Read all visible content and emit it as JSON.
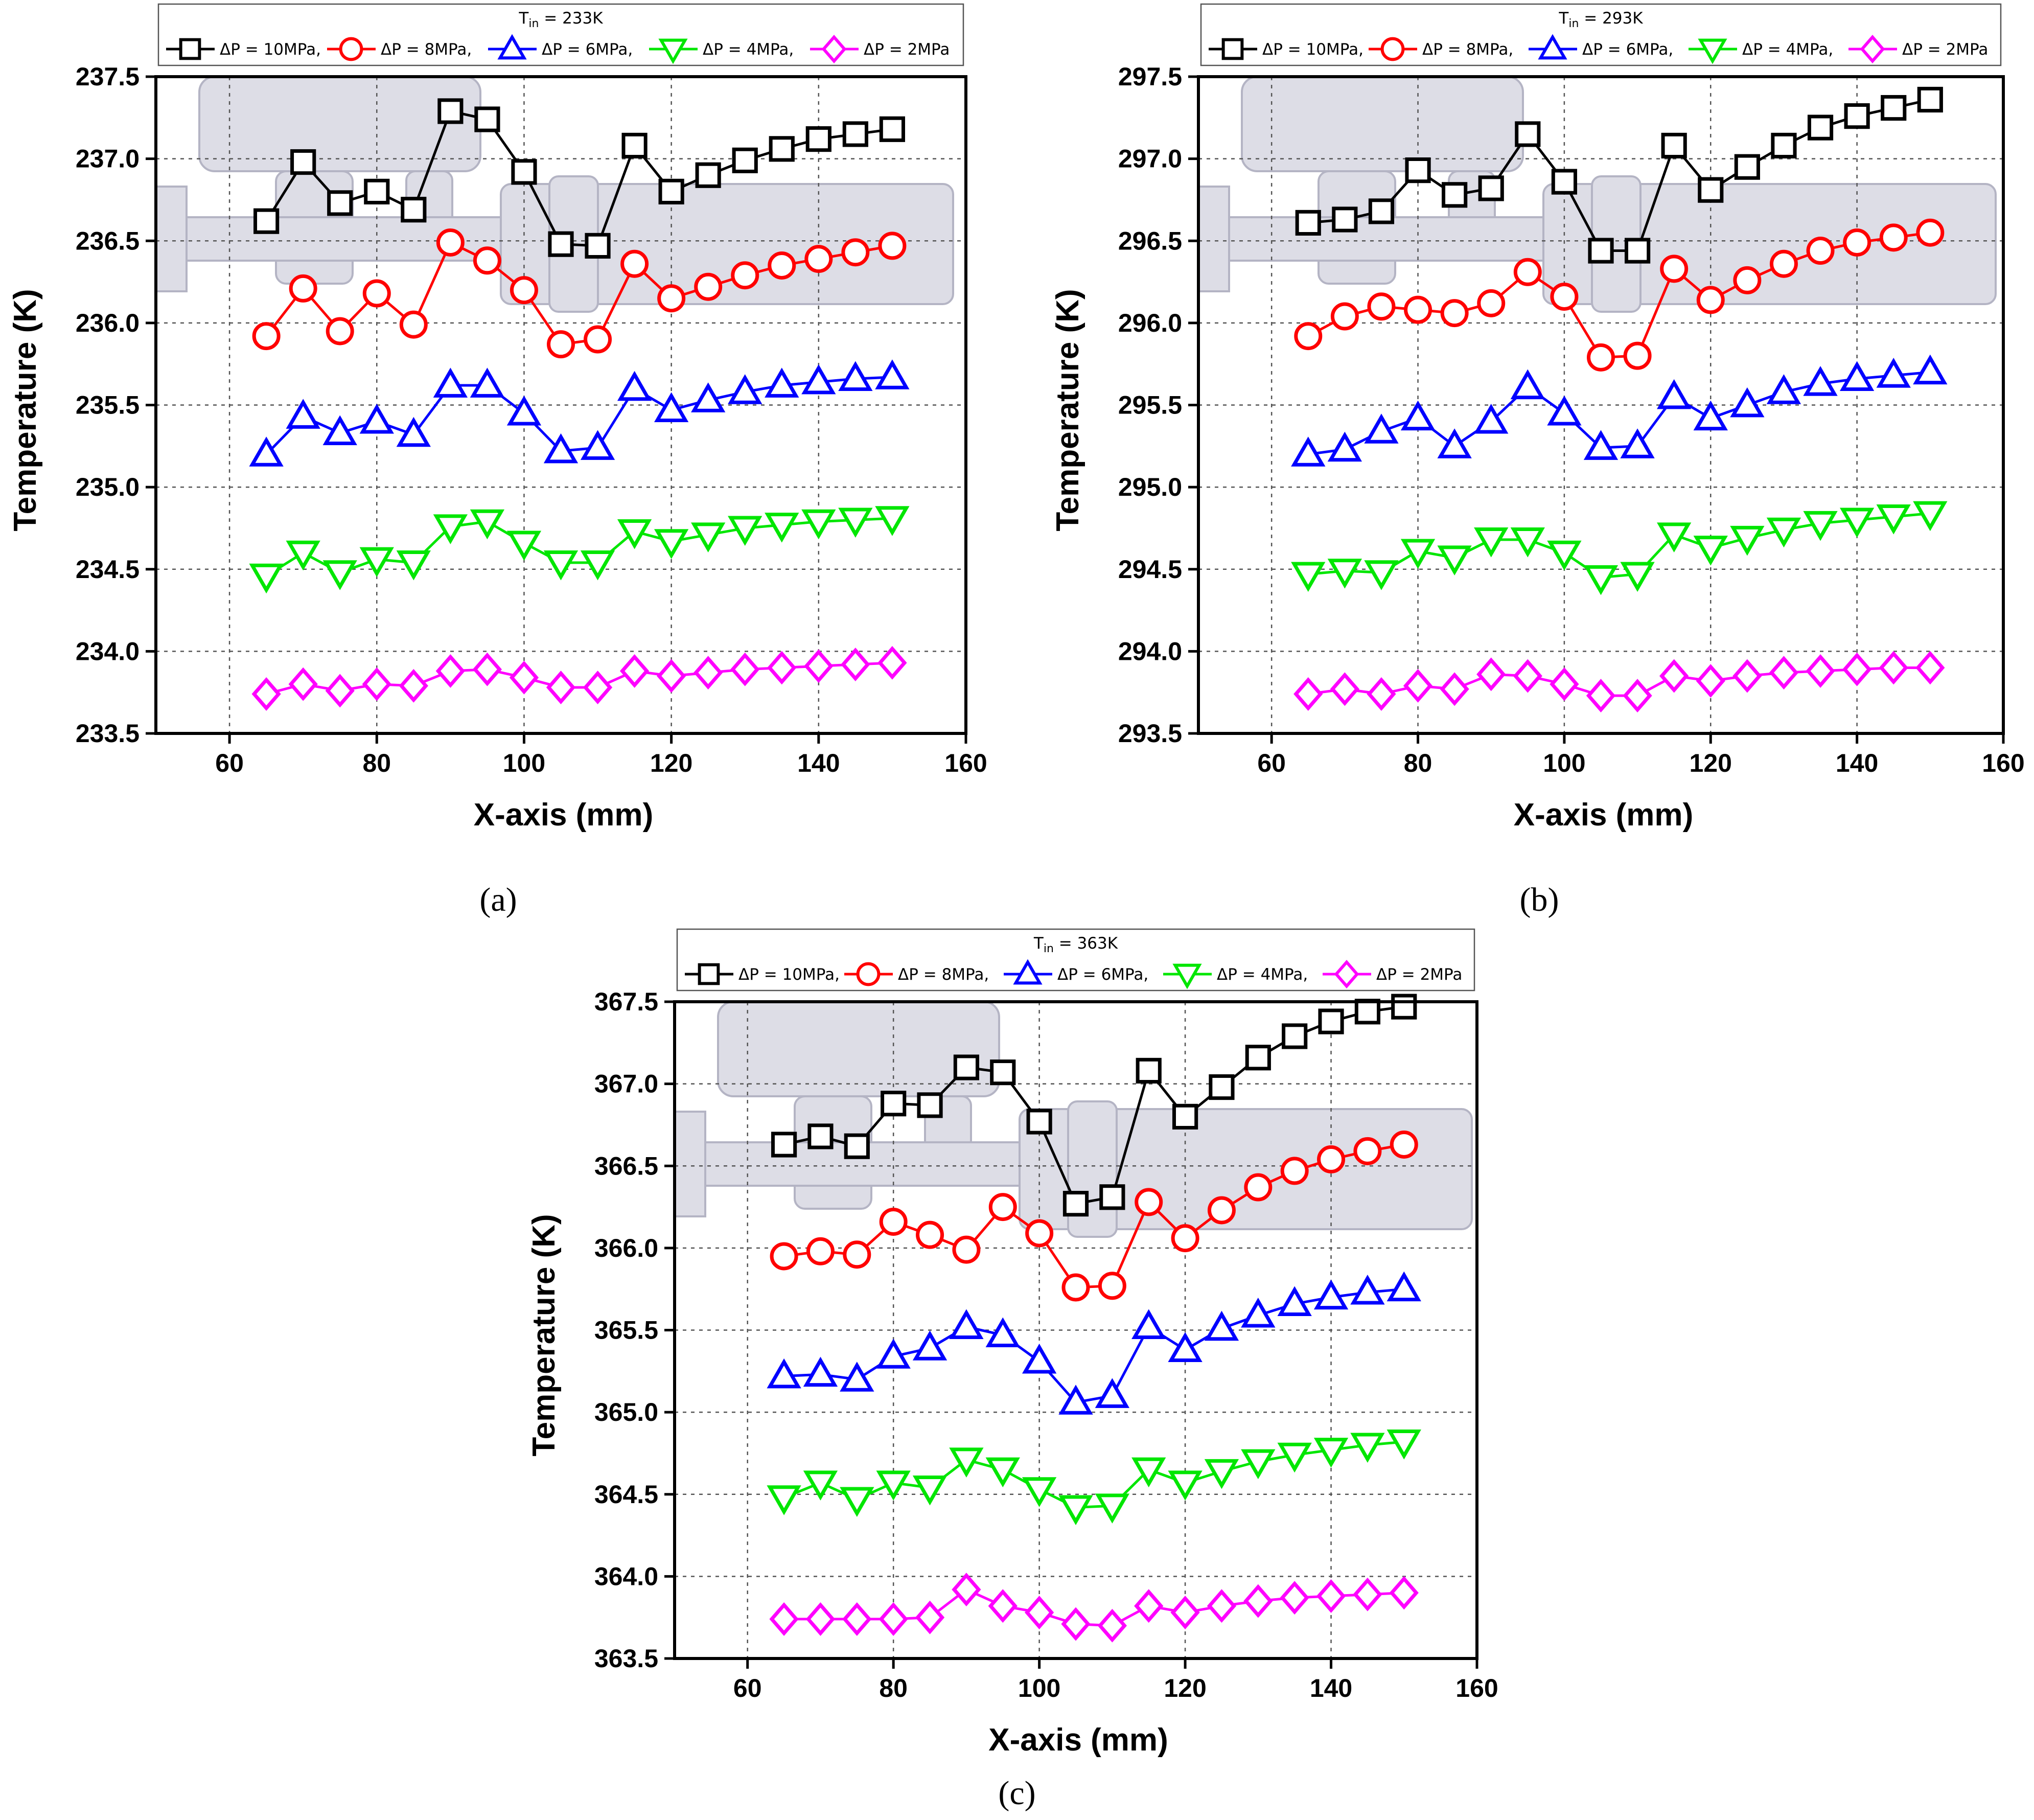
{
  "figure": {
    "panel_labels": [
      "(a)",
      "(b)",
      "(c)"
    ]
  },
  "chart_data": [
    {
      "type": "line",
      "panel": "(a)",
      "title": "T_in = 233K",
      "title_main": "T",
      "title_sub": "in",
      "title_rest": " = 233K",
      "xlabel": "X-axis (mm)",
      "ylabel": "Temperature (K)",
      "xlim": [
        50,
        160
      ],
      "ylim": [
        233.5,
        237.5
      ],
      "xticks": [
        60,
        80,
        100,
        120,
        140,
        160
      ],
      "yticks": [
        233.5,
        234.0,
        234.5,
        235.0,
        235.5,
        236.0,
        236.5,
        237.0,
        237.5
      ],
      "ytick_labels": [
        "233.5",
        "234.0",
        "234.5",
        "235.0",
        "235.5",
        "236.0",
        "236.5",
        "237.0",
        "237.5"
      ],
      "grid": true,
      "legend_position": "top",
      "x": [
        65,
        70,
        75,
        80,
        85,
        90,
        95,
        100,
        105,
        110,
        115,
        120,
        125,
        130,
        135,
        140,
        145,
        150
      ],
      "series": [
        {
          "name": "ΔP = 10MPa,",
          "color": "#000000",
          "marker": "square",
          "values": [
            236.62,
            236.98,
            236.73,
            236.8,
            236.69,
            237.29,
            237.24,
            236.92,
            236.48,
            236.47,
            237.08,
            236.8,
            236.9,
            236.99,
            237.06,
            237.12,
            237.15,
            237.18
          ]
        },
        {
          "name": "ΔP = 8MPa,",
          "color": "#ff0000",
          "marker": "circle",
          "values": [
            235.92,
            236.21,
            235.95,
            236.18,
            235.99,
            236.49,
            236.38,
            236.2,
            235.87,
            235.9,
            236.36,
            236.15,
            236.22,
            236.29,
            236.35,
            236.39,
            236.43,
            236.47
          ]
        },
        {
          "name": "ΔP = 6MPa,",
          "color": "#0000ff",
          "marker": "triangle-up",
          "values": [
            235.2,
            235.43,
            235.33,
            235.4,
            235.32,
            235.62,
            235.62,
            235.45,
            235.22,
            235.24,
            235.6,
            235.47,
            235.53,
            235.58,
            235.62,
            235.64,
            235.66,
            235.67
          ]
        },
        {
          "name": "ΔP = 4MPa,",
          "color": "#00e600",
          "marker": "triangle-down",
          "values": [
            234.46,
            234.6,
            234.48,
            234.56,
            234.54,
            234.76,
            234.79,
            234.66,
            234.54,
            234.54,
            234.73,
            234.67,
            234.71,
            234.75,
            234.77,
            234.79,
            234.8,
            234.81
          ]
        },
        {
          "name": "ΔP = 2MPa",
          "color": "#ff00ff",
          "marker": "diamond",
          "values": [
            233.74,
            233.8,
            233.76,
            233.8,
            233.79,
            233.88,
            233.89,
            233.84,
            233.78,
            233.78,
            233.88,
            233.85,
            233.87,
            233.89,
            233.9,
            233.91,
            233.92,
            233.93
          ]
        }
      ]
    },
    {
      "type": "line",
      "panel": "(b)",
      "title": "T_in = 293K",
      "title_main": "T",
      "title_sub": "in",
      "title_rest": " = 293K",
      "xlabel": "X-axis (mm)",
      "ylabel": "Temperature (K)",
      "xlim": [
        50,
        160
      ],
      "ylim": [
        293.5,
        297.5
      ],
      "xticks": [
        60,
        80,
        100,
        120,
        140,
        160
      ],
      "yticks": [
        293.5,
        294.0,
        294.5,
        295.0,
        295.5,
        296.0,
        296.5,
        297.0,
        297.5
      ],
      "ytick_labels": [
        "293.5",
        "294.0",
        "294.5",
        "295.0",
        "295.5",
        "296.0",
        "296.5",
        "297.0",
        "297.5"
      ],
      "grid": true,
      "legend_position": "top",
      "x": [
        65,
        70,
        75,
        80,
        85,
        90,
        95,
        100,
        105,
        110,
        115,
        120,
        125,
        130,
        135,
        140,
        145,
        150
      ],
      "series": [
        {
          "name": "ΔP = 10MPa,",
          "color": "#000000",
          "marker": "square",
          "values": [
            296.61,
            296.63,
            296.68,
            296.93,
            296.78,
            296.82,
            297.15,
            296.86,
            296.44,
            296.44,
            297.08,
            296.81,
            296.95,
            297.08,
            297.19,
            297.26,
            297.31,
            297.36
          ]
        },
        {
          "name": "ΔP = 8MPa,",
          "color": "#ff0000",
          "marker": "circle",
          "values": [
            295.92,
            296.04,
            296.1,
            296.08,
            296.06,
            296.12,
            296.31,
            296.16,
            295.79,
            295.8,
            296.33,
            296.14,
            296.26,
            296.36,
            296.44,
            296.49,
            296.52,
            296.55
          ]
        },
        {
          "name": "ΔP = 6MPa,",
          "color": "#0000ff",
          "marker": "triangle-up",
          "values": [
            295.2,
            295.23,
            295.34,
            295.42,
            295.25,
            295.4,
            295.61,
            295.45,
            295.24,
            295.25,
            295.55,
            295.42,
            295.5,
            295.58,
            295.63,
            295.66,
            295.68,
            295.7
          ]
        },
        {
          "name": "ΔP = 4MPa,",
          "color": "#00e600",
          "marker": "triangle-down",
          "values": [
            294.47,
            294.49,
            294.48,
            294.61,
            294.57,
            294.68,
            294.68,
            294.6,
            294.45,
            294.47,
            294.71,
            294.63,
            294.69,
            294.74,
            294.78,
            294.8,
            294.82,
            294.84
          ]
        },
        {
          "name": "ΔP = 2MPa",
          "color": "#ff00ff",
          "marker": "diamond",
          "values": [
            293.74,
            293.77,
            293.74,
            293.79,
            293.77,
            293.86,
            293.85,
            293.8,
            293.73,
            293.73,
            293.85,
            293.82,
            293.85,
            293.87,
            293.88,
            293.89,
            293.9,
            293.9
          ]
        }
      ]
    },
    {
      "type": "line",
      "panel": "(c)",
      "title": "T_in = 363K",
      "title_main": "T",
      "title_sub": "in",
      "title_rest": " = 363K",
      "xlabel": "X-axis (mm)",
      "ylabel": "Temperature (K)",
      "xlim": [
        50,
        160
      ],
      "ylim": [
        363.5,
        367.5
      ],
      "xticks": [
        60,
        80,
        100,
        120,
        140,
        160
      ],
      "yticks": [
        363.5,
        364.0,
        364.5,
        365.0,
        365.5,
        366.0,
        366.5,
        367.0,
        367.5
      ],
      "ytick_labels": [
        "363.5",
        "364.0",
        "364.5",
        "365.0",
        "365.5",
        "366.0",
        "366.5",
        "367.0",
        "367.5"
      ],
      "grid": true,
      "legend_position": "top",
      "x": [
        65,
        70,
        75,
        80,
        85,
        90,
        95,
        100,
        105,
        110,
        115,
        120,
        125,
        130,
        135,
        140,
        145,
        150
      ],
      "series": [
        {
          "name": "ΔP = 10MPa,",
          "color": "#000000",
          "marker": "square",
          "values": [
            366.63,
            366.68,
            366.62,
            366.88,
            366.87,
            367.1,
            367.07,
            366.77,
            366.27,
            366.31,
            367.08,
            366.8,
            366.98,
            367.16,
            367.29,
            367.38,
            367.44,
            367.47
          ]
        },
        {
          "name": "ΔP = 8MPa,",
          "color": "#ff0000",
          "marker": "circle",
          "values": [
            365.95,
            365.98,
            365.96,
            366.16,
            366.08,
            365.99,
            366.25,
            366.09,
            365.76,
            365.77,
            366.28,
            366.06,
            366.23,
            366.37,
            366.47,
            366.54,
            366.59,
            366.63
          ]
        },
        {
          "name": "ΔP = 6MPa,",
          "color": "#0000ff",
          "marker": "triangle-up",
          "values": [
            365.22,
            365.23,
            365.2,
            365.34,
            365.39,
            365.52,
            365.47,
            365.31,
            365.06,
            365.1,
            365.52,
            365.38,
            365.51,
            365.59,
            365.66,
            365.7,
            365.73,
            365.75
          ]
        },
        {
          "name": "ΔP = 4MPa,",
          "color": "#00e600",
          "marker": "triangle-down",
          "values": [
            364.48,
            364.57,
            364.47,
            364.57,
            364.54,
            364.71,
            364.65,
            364.53,
            364.42,
            364.43,
            364.65,
            364.57,
            364.64,
            364.7,
            364.74,
            364.77,
            364.8,
            364.82
          ]
        },
        {
          "name": "ΔP = 2MPa",
          "color": "#ff00ff",
          "marker": "diamond",
          "values": [
            363.74,
            363.74,
            363.74,
            363.74,
            363.75,
            363.92,
            363.82,
            363.78,
            363.71,
            363.7,
            363.82,
            363.78,
            363.82,
            363.85,
            363.87,
            363.88,
            363.89,
            363.9
          ]
        }
      ]
    }
  ]
}
